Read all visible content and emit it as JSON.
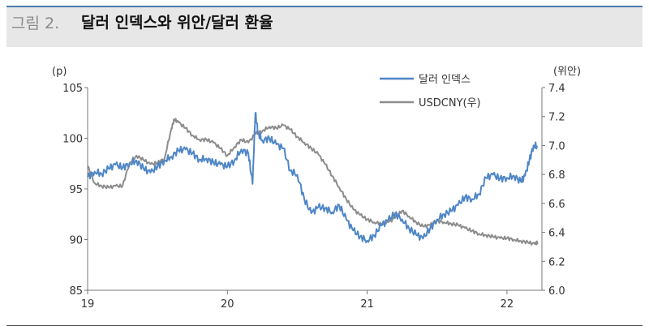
{
  "figure": {
    "number_label": "그림 2.",
    "title": "달러 인덱스와 위안/달러 환율"
  },
  "chart_data": {
    "type": "line",
    "left_unit": "(p)",
    "right_unit": "(위안)",
    "x_ticks": [
      "19",
      "20",
      "21",
      "22"
    ],
    "y_left_ticks": [
      "105",
      "100",
      "95",
      "90",
      "85"
    ],
    "y_right_ticks": [
      "7.4",
      "7.2",
      "7.0",
      "6.8",
      "6.6",
      "6.4",
      "6.2",
      "6.0"
    ],
    "ylim_left": [
      85,
      105
    ],
    "ylim_right": [
      6.0,
      7.4
    ],
    "xlim": [
      2019.0,
      2022.25
    ],
    "legend_position": "top-right",
    "series": [
      {
        "name": "달러 인덱스",
        "axis": "left",
        "color": "#4f86c6",
        "x": [
          2019.0,
          2019.05,
          2019.1,
          2019.15,
          2019.2,
          2019.25,
          2019.3,
          2019.35,
          2019.4,
          2019.45,
          2019.5,
          2019.55,
          2019.6,
          2019.65,
          2019.7,
          2019.75,
          2019.8,
          2019.85,
          2019.9,
          2019.95,
          2020.0,
          2020.05,
          2020.1,
          2020.15,
          2020.18,
          2020.2,
          2020.22,
          2020.25,
          2020.3,
          2020.35,
          2020.4,
          2020.45,
          2020.5,
          2020.55,
          2020.6,
          2020.65,
          2020.7,
          2020.75,
          2020.8,
          2020.85,
          2020.9,
          2020.95,
          2021.0,
          2021.05,
          2021.1,
          2021.15,
          2021.2,
          2021.25,
          2021.3,
          2021.35,
          2021.4,
          2021.45,
          2021.5,
          2021.55,
          2021.6,
          2021.65,
          2021.7,
          2021.75,
          2021.8,
          2021.85,
          2021.9,
          2021.95,
          2022.0,
          2022.05,
          2022.1,
          2022.13,
          2022.16,
          2022.19,
          2022.22
        ],
        "values": [
          96.2,
          96.7,
          96.5,
          97.0,
          97.4,
          97.1,
          97.5,
          97.8,
          97.0,
          96.6,
          97.2,
          97.8,
          98.2,
          98.8,
          98.9,
          98.5,
          97.9,
          98.0,
          97.6,
          97.4,
          97.2,
          97.8,
          98.9,
          98.5,
          95.5,
          102.5,
          100.5,
          99.8,
          100.0,
          99.4,
          99.0,
          96.8,
          96.4,
          94.0,
          92.6,
          93.2,
          93.1,
          92.7,
          93.4,
          92.0,
          90.9,
          90.3,
          89.9,
          90.4,
          91.4,
          91.9,
          92.6,
          92.0,
          91.1,
          90.5,
          90.1,
          91.1,
          92.0,
          92.5,
          92.8,
          93.4,
          94.2,
          94.0,
          94.5,
          96.1,
          96.4,
          96.0,
          96.1,
          96.3,
          95.7,
          96.3,
          97.8,
          99.3,
          99.2
        ]
      },
      {
        "name": "USDCNY(우)",
        "axis": "right",
        "color": "#8c8c8c",
        "x": [
          2019.0,
          2019.05,
          2019.1,
          2019.15,
          2019.2,
          2019.25,
          2019.3,
          2019.35,
          2019.4,
          2019.45,
          2019.5,
          2019.55,
          2019.6,
          2019.62,
          2019.65,
          2019.7,
          2019.75,
          2019.8,
          2019.85,
          2019.9,
          2019.95,
          2020.0,
          2020.05,
          2020.1,
          2020.15,
          2020.2,
          2020.25,
          2020.3,
          2020.35,
          2020.4,
          2020.45,
          2020.5,
          2020.55,
          2020.6,
          2020.65,
          2020.7,
          2020.75,
          2020.8,
          2020.85,
          2020.9,
          2020.95,
          2021.0,
          2021.05,
          2021.1,
          2021.15,
          2021.2,
          2021.25,
          2021.3,
          2021.35,
          2021.4,
          2021.45,
          2021.5,
          2021.55,
          2021.6,
          2021.65,
          2021.7,
          2021.75,
          2021.8,
          2021.85,
          2021.9,
          2021.95,
          2022.0,
          2022.05,
          2022.1,
          2022.15,
          2022.2,
          2022.22
        ],
        "values": [
          6.86,
          6.74,
          6.72,
          6.71,
          6.72,
          6.72,
          6.88,
          6.93,
          6.9,
          6.87,
          6.88,
          6.91,
          7.12,
          7.18,
          7.16,
          7.12,
          7.07,
          7.04,
          7.04,
          7.02,
          6.98,
          6.93,
          6.99,
          7.04,
          7.02,
          7.08,
          7.1,
          7.13,
          7.12,
          7.14,
          7.11,
          7.06,
          7.02,
          6.98,
          6.94,
          6.87,
          6.79,
          6.71,
          6.63,
          6.56,
          6.52,
          6.49,
          6.47,
          6.46,
          6.47,
          6.5,
          6.55,
          6.51,
          6.47,
          6.44,
          6.45,
          6.48,
          6.47,
          6.46,
          6.45,
          6.43,
          6.41,
          6.39,
          6.38,
          6.37,
          6.36,
          6.36,
          6.35,
          6.34,
          6.33,
          6.32,
          6.33
        ]
      }
    ]
  }
}
